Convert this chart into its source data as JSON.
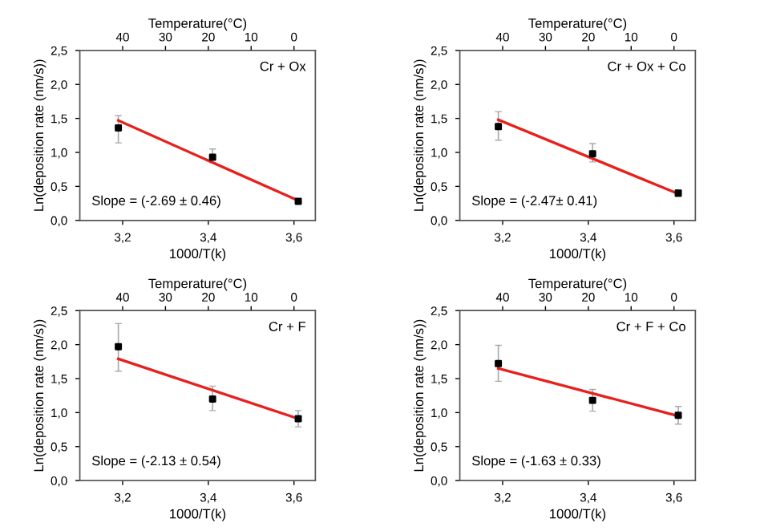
{
  "chart_data": [
    {
      "type": "scatter",
      "xlabel": "1000/T(k)",
      "ylabel": "Ln(deposition rate (nm/s))",
      "x2label": "Temperature(°C)",
      "annotations": [
        "Cr + Ox",
        "Slope = (-2.69 ± 0.46)"
      ],
      "xlim": [
        3.1,
        3.65
      ],
      "ylim": [
        0,
        2.5
      ],
      "x2lim": [
        50,
        -5
      ],
      "xticks": [
        {
          "value": 3.2,
          "label": "3,2"
        },
        {
          "value": 3.4,
          "label": "3,4"
        },
        {
          "value": 3.6,
          "label": "3,6"
        }
      ],
      "yticks": [
        {
          "value": 0,
          "label": "0,0"
        },
        {
          "value": 0.5,
          "label": "0,5"
        },
        {
          "value": 1.0,
          "label": "1,0"
        },
        {
          "value": 1.5,
          "label": "1,5"
        },
        {
          "value": 2.0,
          "label": "2,0"
        },
        {
          "value": 2.5,
          "label": "2,5"
        }
      ],
      "x2ticks": [
        40,
        30,
        20,
        10,
        0
      ],
      "grid": false,
      "legend": false,
      "series": [
        {
          "type": "scatter",
          "color": "#000000",
          "marker": "square",
          "x": [
            3.19,
            3.41,
            3.61
          ],
          "values": [
            1.36,
            0.93,
            0.28
          ],
          "errors": [
            [
              1.14,
              1.54
            ],
            [
              0.85,
              1.05
            ],
            [
              0.24,
              0.32
            ]
          ]
        },
        {
          "type": "line",
          "color": "#e8201c",
          "x": [
            3.19,
            3.61
          ],
          "values": [
            1.47,
            0.29
          ]
        }
      ]
    },
    {
      "type": "scatter",
      "xlabel": "1000/T(k)",
      "ylabel": "Ln(deposition rate (nm/s))",
      "x2label": "Temperature(°C)",
      "annotations": [
        "Cr + Ox + Co",
        "Slope = (-2.47± 0.41)"
      ],
      "xlim": [
        3.1,
        3.65
      ],
      "ylim": [
        0,
        2.5
      ],
      "x2lim": [
        50,
        -5
      ],
      "xticks": [
        {
          "value": 3.2,
          "label": "3,2"
        },
        {
          "value": 3.4,
          "label": "3,4"
        },
        {
          "value": 3.6,
          "label": "3,6"
        }
      ],
      "yticks": [
        {
          "value": 0,
          "label": "0,0"
        },
        {
          "value": 0.5,
          "label": "0,5"
        },
        {
          "value": 1.0,
          "label": "1,0"
        },
        {
          "value": 1.5,
          "label": "1,5"
        },
        {
          "value": 2.0,
          "label": "2,0"
        },
        {
          "value": 2.5,
          "label": "2,5"
        }
      ],
      "x2ticks": [
        40,
        30,
        20,
        10,
        0
      ],
      "grid": false,
      "legend": false,
      "series": [
        {
          "type": "scatter",
          "color": "#000000",
          "marker": "square",
          "x": [
            3.19,
            3.41,
            3.61
          ],
          "values": [
            1.38,
            0.98,
            0.4
          ],
          "errors": [
            [
              1.18,
              1.6
            ],
            [
              0.86,
              1.13
            ],
            [
              0.35,
              0.45
            ]
          ]
        },
        {
          "type": "line",
          "color": "#e8201c",
          "x": [
            3.19,
            3.61
          ],
          "values": [
            1.48,
            0.39
          ]
        }
      ]
    },
    {
      "type": "scatter",
      "xlabel": "1000/T(k)",
      "ylabel": "Ln(deposition rate (nm/s))",
      "x2label": "Temperature(°C)",
      "annotations": [
        "Cr + F",
        "Slope = (-2.13 ± 0.54)"
      ],
      "xlim": [
        3.1,
        3.65
      ],
      "ylim": [
        0,
        2.5
      ],
      "x2lim": [
        50,
        -5
      ],
      "xticks": [
        {
          "value": 3.2,
          "label": "3,2"
        },
        {
          "value": 3.4,
          "label": "3,4"
        },
        {
          "value": 3.6,
          "label": "3,6"
        }
      ],
      "yticks": [
        {
          "value": 0,
          "label": "0,0"
        },
        {
          "value": 0.5,
          "label": "0,5"
        },
        {
          "value": 1.0,
          "label": "1,0"
        },
        {
          "value": 1.5,
          "label": "1,5"
        },
        {
          "value": 2.0,
          "label": "2,0"
        },
        {
          "value": 2.5,
          "label": "2,5"
        }
      ],
      "x2ticks": [
        40,
        30,
        20,
        10,
        0
      ],
      "grid": false,
      "legend": false,
      "series": [
        {
          "type": "scatter",
          "color": "#000000",
          "marker": "square",
          "x": [
            3.19,
            3.41,
            3.61
          ],
          "values": [
            1.97,
            1.2,
            0.91
          ],
          "errors": [
            [
              1.61,
              2.31
            ],
            [
              1.03,
              1.39
            ],
            [
              0.79,
              1.03
            ]
          ]
        },
        {
          "type": "line",
          "color": "#e8201c",
          "x": [
            3.19,
            3.61
          ],
          "values": [
            1.79,
            0.91
          ]
        }
      ]
    },
    {
      "type": "scatter",
      "xlabel": "1000/T(k)",
      "ylabel": "Ln(deposition rate (nm/s))",
      "x2label": "Temperature(°C)",
      "annotations": [
        "Cr + F + Co",
        "Slope = (-1.63 ± 0.33)"
      ],
      "xlim": [
        3.1,
        3.65
      ],
      "ylim": [
        0,
        2.5
      ],
      "x2lim": [
        50,
        -5
      ],
      "xticks": [
        {
          "value": 3.2,
          "label": "3,2"
        },
        {
          "value": 3.4,
          "label": "3,4"
        },
        {
          "value": 3.6,
          "label": "3,6"
        }
      ],
      "yticks": [
        {
          "value": 0,
          "label": "0,0"
        },
        {
          "value": 0.5,
          "label": "0,5"
        },
        {
          "value": 1.0,
          "label": "1,0"
        },
        {
          "value": 1.5,
          "label": "1,5"
        },
        {
          "value": 2.0,
          "label": "2,0"
        },
        {
          "value": 2.5,
          "label": "2,5"
        }
      ],
      "x2ticks": [
        40,
        30,
        20,
        10,
        0
      ],
      "grid": false,
      "legend": false,
      "series": [
        {
          "type": "scatter",
          "color": "#000000",
          "marker": "square",
          "x": [
            3.19,
            3.41,
            3.61
          ],
          "values": [
            1.72,
            1.18,
            0.96
          ],
          "errors": [
            [
              1.46,
              1.99
            ],
            [
              1.02,
              1.34
            ],
            [
              0.83,
              1.09
            ]
          ]
        },
        {
          "type": "line",
          "color": "#e8201c",
          "x": [
            3.19,
            3.61
          ],
          "values": [
            1.65,
            0.95
          ]
        }
      ]
    }
  ]
}
